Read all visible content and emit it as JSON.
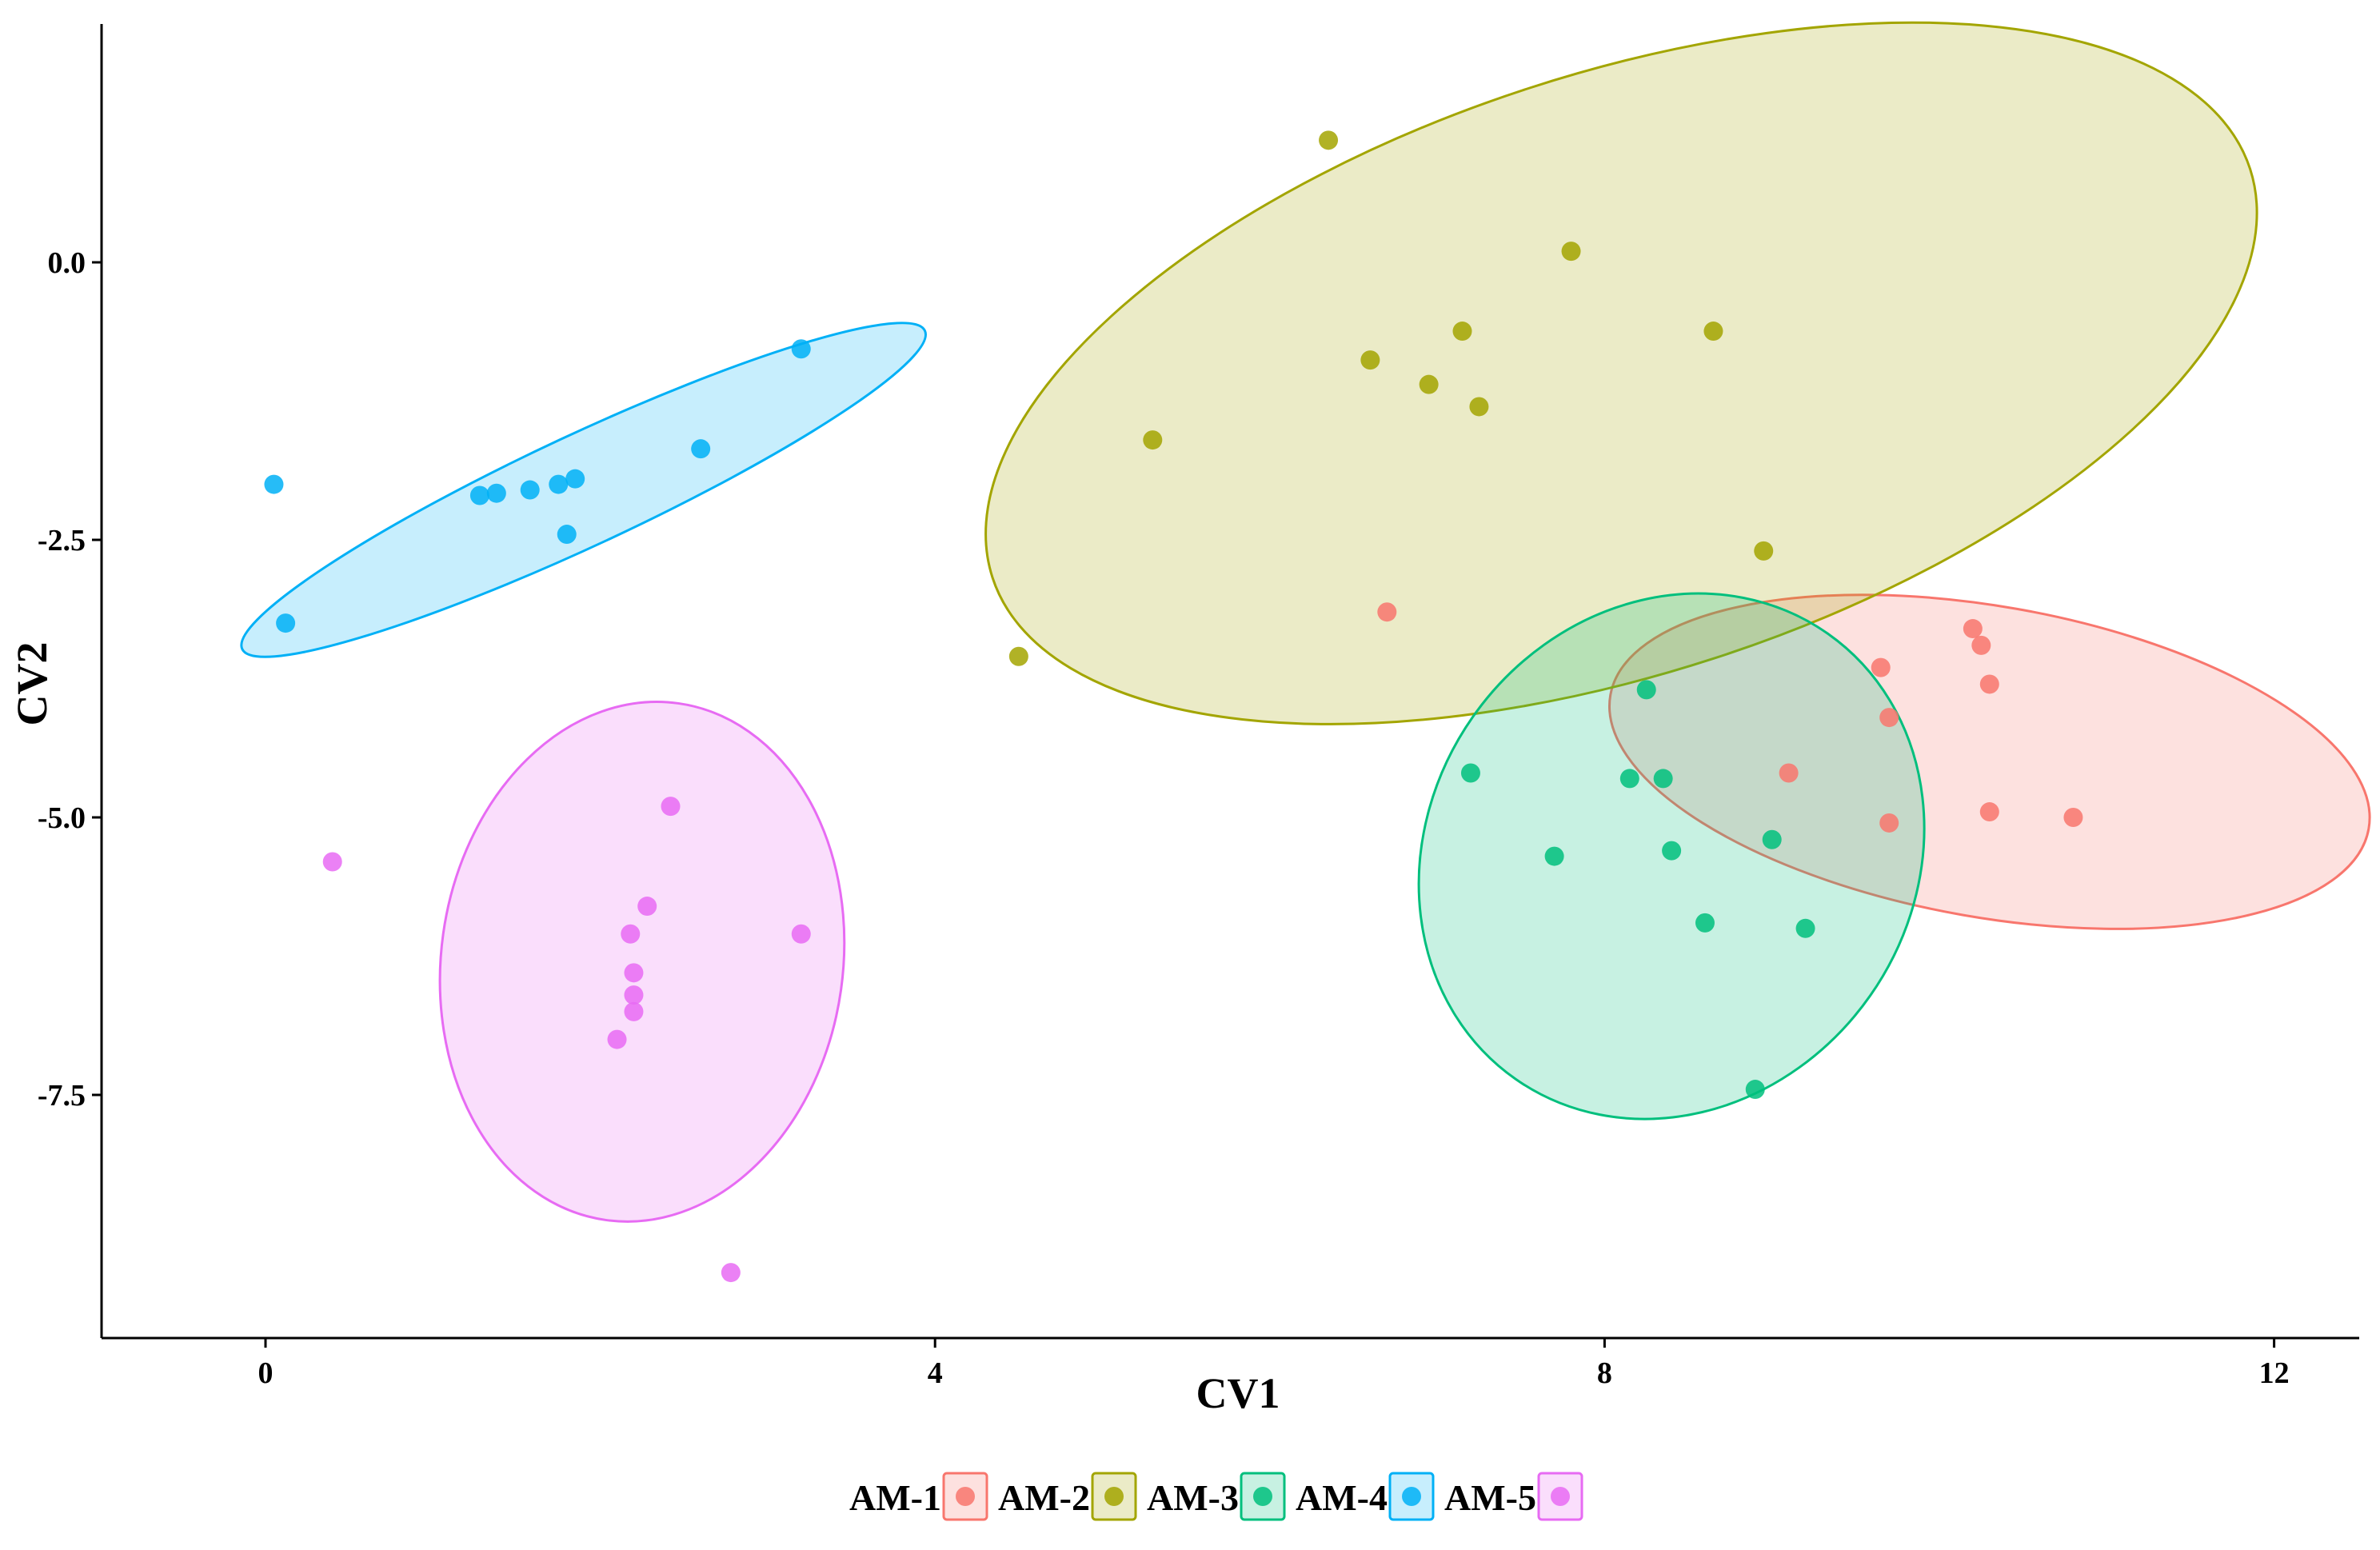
{
  "chart_data": {
    "type": "scatter",
    "title": "",
    "xlabel": "CV1",
    "ylabel": "CV2",
    "xlim": [
      -1.0,
      12.5
    ],
    "ylim": [
      -9.5,
      2.1
    ],
    "xticks": [
      {
        "value": 0,
        "label": "0"
      },
      {
        "value": 4,
        "label": "4"
      },
      {
        "value": 8,
        "label": "8"
      },
      {
        "value": 12,
        "label": "12"
      }
    ],
    "yticks": [
      {
        "value": 0.0,
        "label": "0.0"
      },
      {
        "value": -2.5,
        "label": "-2.5"
      },
      {
        "value": -5.0,
        "label": "-5.0"
      },
      {
        "value": -7.5,
        "label": "-7.5"
      }
    ],
    "grid": false,
    "legend_position": "bottom",
    "series": [
      {
        "name": "AM-1",
        "color": "#F8766D",
        "fill": "#F8766D",
        "ellipse": {
          "cx": 10.3,
          "cy": -4.5,
          "rx": 2.3,
          "ry": 1.4,
          "angle": -10
        },
        "points": [
          [
            6.7,
            -3.15
          ],
          [
            9.1,
            -4.6
          ],
          [
            9.65,
            -3.65
          ],
          [
            9.7,
            -4.1
          ],
          [
            9.7,
            -5.05
          ],
          [
            10.2,
            -3.3
          ],
          [
            10.25,
            -3.45
          ],
          [
            10.3,
            -3.8
          ],
          [
            10.3,
            -4.95
          ],
          [
            10.8,
            -5.0
          ]
        ]
      },
      {
        "name": "AM-2",
        "color": "#A3A500",
        "fill": "#A3A500",
        "ellipse": {
          "cx": 8.1,
          "cy": -1.0,
          "rx": 3.95,
          "ry": 2.7,
          "angle": 18
        },
        "points": [
          [
            4.5,
            -3.55
          ],
          [
            5.3,
            -1.6
          ],
          [
            6.35,
            1.1
          ],
          [
            6.6,
            -0.88
          ],
          [
            6.95,
            -1.1
          ],
          [
            7.15,
            -0.62
          ],
          [
            7.25,
            -1.3
          ],
          [
            7.8,
            0.1
          ],
          [
            8.65,
            -0.62
          ],
          [
            8.95,
            -2.6
          ]
        ]
      },
      {
        "name": "AM-3",
        "color": "#00BF7D",
        "fill": "#00BF7D",
        "ellipse": {
          "cx": 8.4,
          "cy": -5.35,
          "rx": 1.45,
          "ry": 2.45,
          "angle": -35
        },
        "points": [
          [
            7.2,
            -4.6
          ],
          [
            7.7,
            -5.35
          ],
          [
            8.15,
            -4.65
          ],
          [
            8.25,
            -3.85
          ],
          [
            8.35,
            -4.65
          ],
          [
            8.4,
            -5.3
          ],
          [
            8.6,
            -5.95
          ],
          [
            8.9,
            -7.45
          ],
          [
            9.0,
            -5.2
          ],
          [
            9.2,
            -6.0
          ]
        ]
      },
      {
        "name": "AM-4",
        "color": "#00B0F6",
        "fill": "#00B0F6",
        "ellipse": {
          "cx": 1.9,
          "cy": -2.05,
          "rx": 2.25,
          "ry": 0.5,
          "angle": 25
        },
        "points": [
          [
            0.05,
            -2.0
          ],
          [
            0.12,
            -3.25
          ],
          [
            1.28,
            -2.1
          ],
          [
            1.38,
            -2.08
          ],
          [
            1.58,
            -2.05
          ],
          [
            1.75,
            -2.0
          ],
          [
            1.85,
            -1.95
          ],
          [
            1.8,
            -2.45
          ],
          [
            2.6,
            -1.68
          ],
          [
            3.2,
            -0.78
          ]
        ]
      },
      {
        "name": "AM-5",
        "color": "#E76BF3",
        "fill": "#E76BF3",
        "ellipse": {
          "cx": 2.25,
          "cy": -6.3,
          "rx": 1.2,
          "ry": 2.35,
          "angle": -8
        },
        "points": [
          [
            0.4,
            -5.4
          ],
          [
            2.1,
            -7.0
          ],
          [
            2.18,
            -6.05
          ],
          [
            2.2,
            -6.4
          ],
          [
            2.2,
            -6.6
          ],
          [
            2.2,
            -6.75
          ],
          [
            2.28,
            -5.8
          ],
          [
            2.42,
            -4.9
          ],
          [
            2.78,
            -9.1
          ],
          [
            3.2,
            -6.05
          ]
        ]
      }
    ]
  }
}
